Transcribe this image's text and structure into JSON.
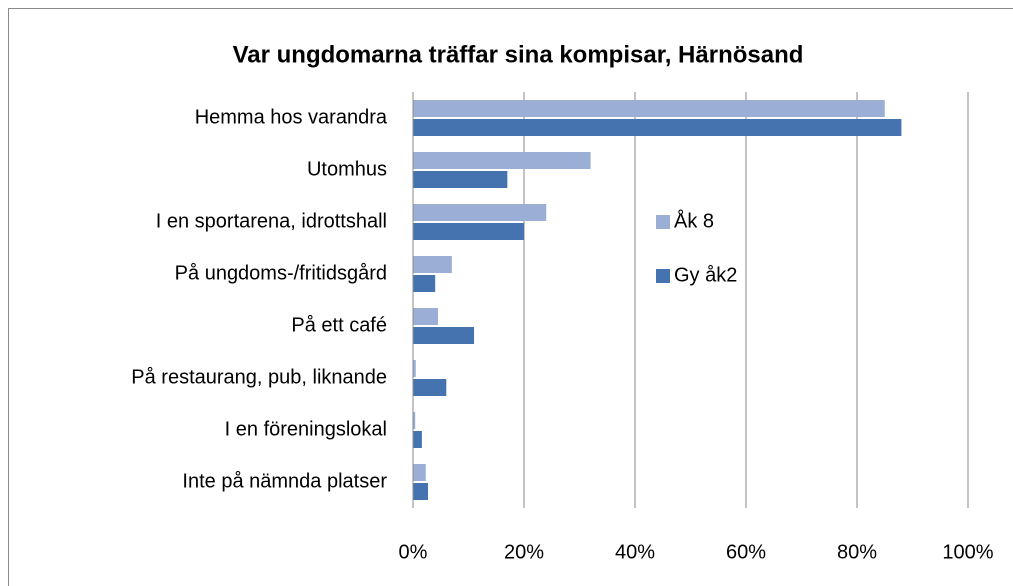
{
  "chart_data": {
    "type": "hbar",
    "title": "Var ungdomarna träffar sina kompisar,  Härnösand",
    "categories": [
      "Hemma hos varandra",
      "Utomhus",
      "I en sportarena, idrottshall",
      "På ungdoms-/fritidsgård",
      "På ett café",
      "På  restaurang, pub, liknande",
      "I en föreningslokal",
      "Inte på nämnda platser"
    ],
    "series": [
      {
        "name": "Åk 8",
        "color": "#9aaed6",
        "values": [
          85,
          32,
          24,
          7,
          4.5,
          0.5,
          0.4,
          2.3
        ]
      },
      {
        "name": "Gy åk2",
        "color": "#4573b0",
        "values": [
          88,
          17,
          20,
          4,
          11,
          6,
          1.6,
          2.7
        ]
      }
    ],
    "xlim": [
      0,
      100
    ],
    "xticks": [
      {
        "value": 0,
        "label": "0%"
      },
      {
        "value": 20,
        "label": "20%"
      },
      {
        "value": 40,
        "label": "40%"
      },
      {
        "value": 60,
        "label": "60%"
      },
      {
        "value": 80,
        "label": "80%"
      },
      {
        "value": 100,
        "label": "100%"
      }
    ],
    "grid": true
  }
}
